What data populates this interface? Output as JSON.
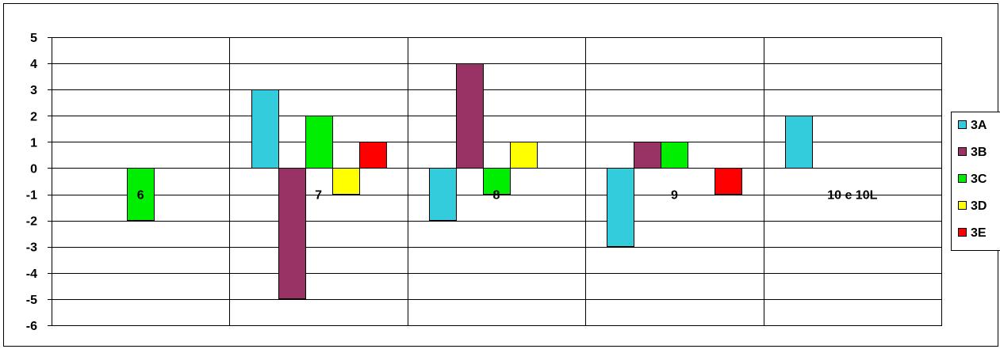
{
  "chart_data": {
    "type": "bar",
    "categories": [
      "6",
      "7",
      "8",
      "9",
      "10 e 10L"
    ],
    "series": [
      {
        "name": "3A",
        "color": "#33ccdd",
        "values": [
          null,
          3,
          -2,
          -3,
          2
        ]
      },
      {
        "name": "3B",
        "color": "#993366",
        "values": [
          null,
          -5,
          4,
          1,
          null
        ]
      },
      {
        "name": "3C",
        "color": "#00ee00",
        "values": [
          -2,
          2,
          -1,
          1,
          null
        ]
      },
      {
        "name": "3D",
        "color": "#ffff00",
        "values": [
          null,
          -1,
          1,
          null,
          null
        ]
      },
      {
        "name": "3E",
        "color": "#ff0000",
        "values": [
          null,
          1,
          null,
          -1,
          null
        ]
      }
    ],
    "ylim": [
      -6,
      5
    ],
    "yticks": [
      "5",
      "4",
      "3",
      "2",
      "1",
      "0",
      "-1",
      "-2",
      "-3",
      "-4",
      "-5",
      "-6"
    ],
    "grid": true,
    "legend": "right"
  }
}
